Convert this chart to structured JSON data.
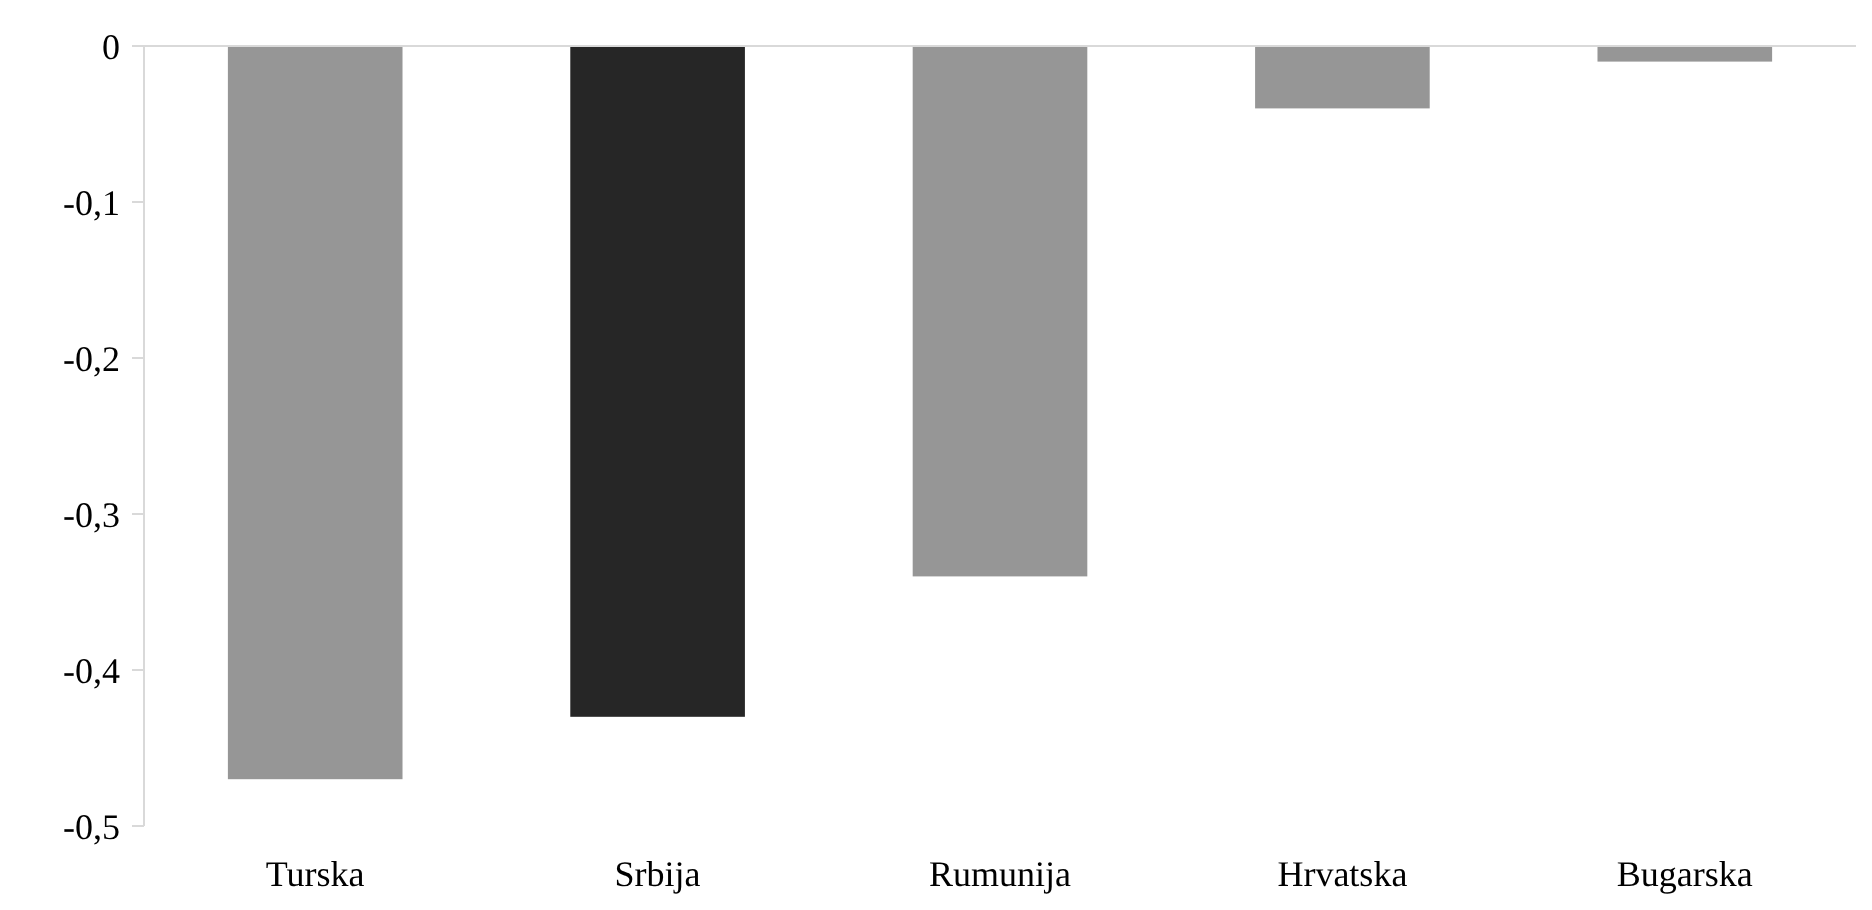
{
  "chart_data": {
    "type": "bar",
    "categories": [
      "Turska",
      "Srbija",
      "Rumunija",
      "Hrvatska",
      "Bugarska"
    ],
    "values": [
      -0.47,
      -0.43,
      -0.34,
      -0.04,
      -0.01
    ],
    "colors": [
      "#969696",
      "#262626",
      "#969696",
      "#969696",
      "#969696"
    ],
    "ylim": [
      -0.5,
      0
    ],
    "yticks": [
      {
        "value": 0,
        "label": "0"
      },
      {
        "value": -0.1,
        "label": "-0,1"
      },
      {
        "value": -0.2,
        "label": "-0,2"
      },
      {
        "value": -0.3,
        "label": "-0,3"
      },
      {
        "value": -0.4,
        "label": "-0,4"
      },
      {
        "value": -0.5,
        "label": "-0,5"
      }
    ],
    "grid": false
  }
}
